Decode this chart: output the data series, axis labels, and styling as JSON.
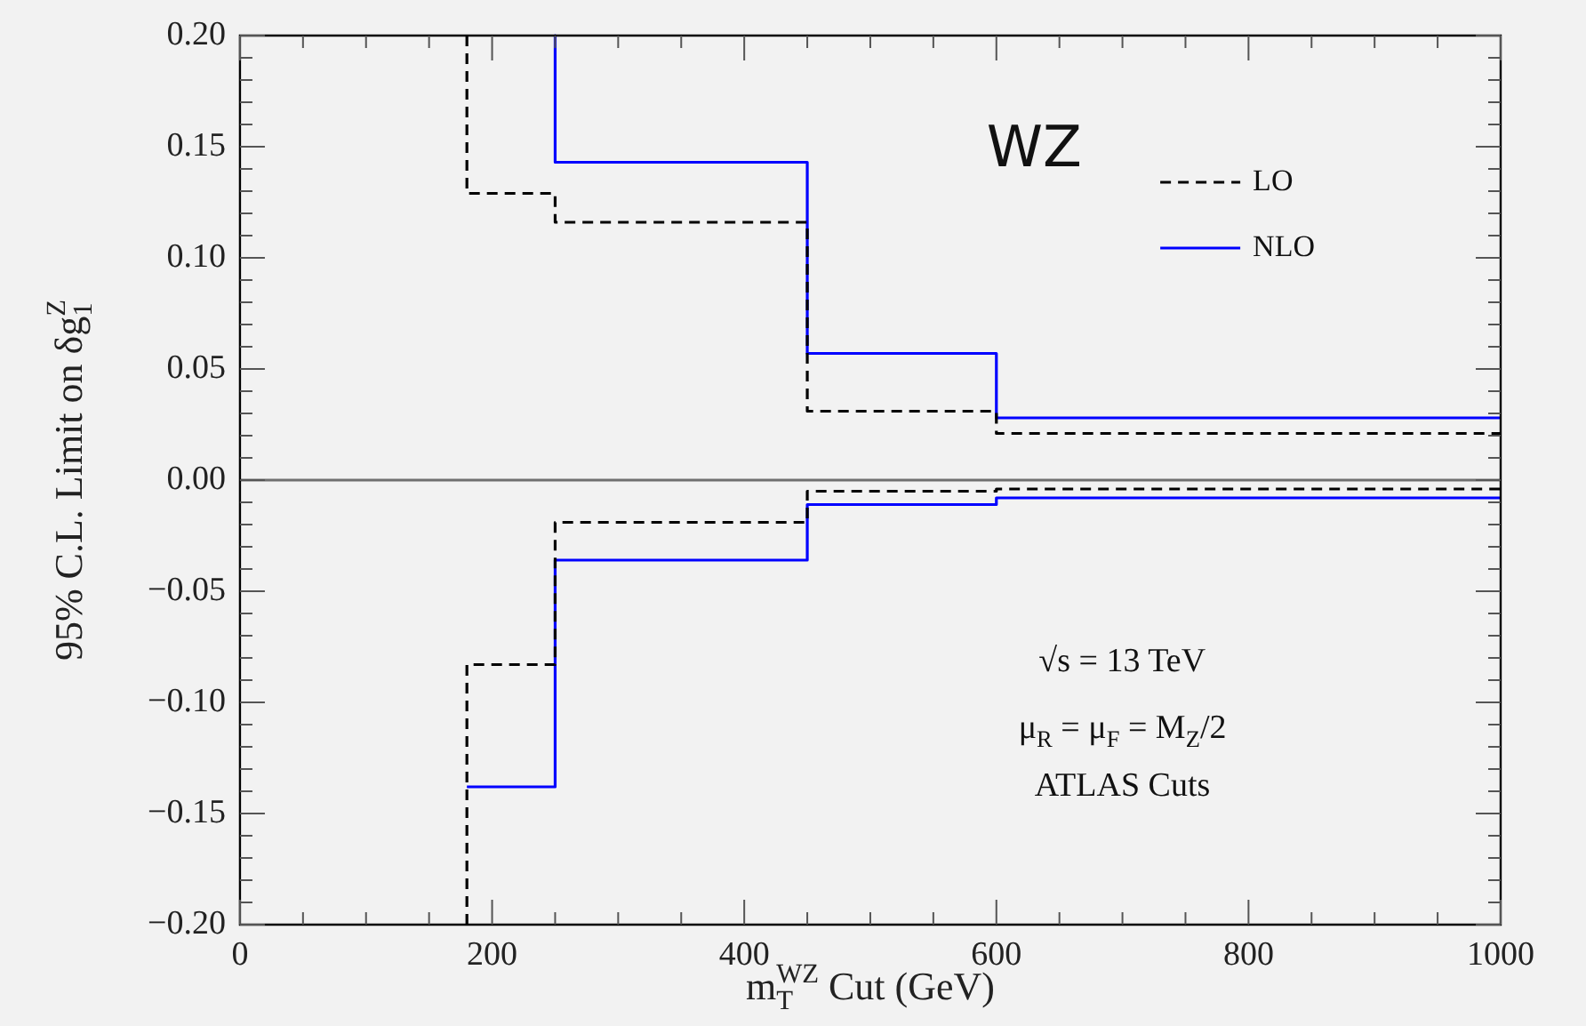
{
  "chart_data": {
    "type": "line",
    "xlabel": "m$_{T}$$^{WZ}$ Cut (GeV)",
    "ylabel": "95% C.L. Limit on δg$_{1}$$^{Z}$",
    "annotations": [
      "WZ",
      "√s = 13 TeV",
      "μ$_{R}$ = μ$_{F}$ = M$_{Z}$/2",
      "ATLAS Cuts"
    ],
    "xlim": [
      0,
      1000
    ],
    "ylim": [
      -0.2,
      0.2
    ],
    "xticks": [
      0,
      {
        "value": 50,
        "label": null
      },
      {
        "value": 100,
        "label": null
      },
      {
        "value": 150,
        "label": null
      },
      200,
      {
        "value": 250,
        "label": null
      },
      {
        "value": 300,
        "label": null
      },
      {
        "value": 350,
        "label": null
      },
      400,
      {
        "value": 450,
        "label": null
      },
      {
        "value": 500,
        "label": null
      },
      {
        "value": 550,
        "label": null
      },
      600,
      {
        "value": 650,
        "label": null
      },
      {
        "value": 700,
        "label": null
      },
      {
        "value": 750,
        "label": null
      },
      800,
      {
        "value": 850,
        "label": null
      },
      {
        "value": 900,
        "label": null
      },
      {
        "value": 950,
        "label": null
      },
      1000
    ],
    "yticks": [
      {
        "value": -0.2,
        "label": "−0.20"
      },
      {
        "value": -0.19,
        "label": null
      },
      {
        "value": -0.18,
        "label": null
      },
      {
        "value": -0.17,
        "label": null
      },
      {
        "value": -0.16,
        "label": null
      },
      {
        "value": -0.15,
        "label": "−0.15"
      },
      {
        "value": -0.14,
        "label": null
      },
      {
        "value": -0.13,
        "label": null
      },
      {
        "value": -0.12,
        "label": null
      },
      {
        "value": -0.11,
        "label": null
      },
      {
        "value": -0.1,
        "label": "−0.10"
      },
      {
        "value": -0.09,
        "label": null
      },
      {
        "value": -0.08,
        "label": null
      },
      {
        "value": -0.07,
        "label": null
      },
      {
        "value": -0.06,
        "label": null
      },
      {
        "value": -0.05,
        "label": "−0.05"
      },
      {
        "value": -0.04,
        "label": null
      },
      {
        "value": -0.03,
        "label": null
      },
      {
        "value": -0.02,
        "label": null
      },
      {
        "value": -0.01,
        "label": null
      },
      {
        "value": 0,
        "label": "0.00"
      },
      {
        "value": 0.01,
        "label": null
      },
      {
        "value": 0.02,
        "label": null
      },
      {
        "value": 0.03,
        "label": null
      },
      {
        "value": 0.04,
        "label": null
      },
      {
        "value": 0.05,
        "label": "0.05"
      },
      {
        "value": 0.06,
        "label": null
      },
      {
        "value": 0.07,
        "label": null
      },
      {
        "value": 0.08,
        "label": null
      },
      {
        "value": 0.09,
        "label": null
      },
      {
        "value": 0.1,
        "label": "0.10"
      },
      {
        "value": 0.11,
        "label": null
      },
      {
        "value": 0.12,
        "label": null
      },
      {
        "value": 0.13,
        "label": null
      },
      {
        "value": 0.14,
        "label": null
      },
      {
        "value": 0.15,
        "label": "0.15"
      },
      {
        "value": 0.16,
        "label": null
      },
      {
        "value": 0.17,
        "label": null
      },
      {
        "value": 0.18,
        "label": null
      },
      {
        "value": 0.19,
        "label": null
      },
      {
        "value": 0.2,
        "label": "0.20"
      }
    ],
    "ref_lines": [
      {
        "axis": "y",
        "value": 0,
        "label": null,
        "color": "#707070"
      }
    ],
    "legend": "top right",
    "marker": "none",
    "series": [
      {
        "name": "LO",
        "color": "#000000",
        "line_style": "dashed",
        "x": [
          180,
          180,
          250,
          250,
          450,
          450,
          600,
          600,
          1000
        ],
        "values": [
          0.2,
          0.129,
          0.129,
          0.116,
          0.116,
          0.031,
          0.031,
          0.021,
          0.021
        ]
      },
      {
        "name": "NLO",
        "color": "#0000ff",
        "line_style": "solid",
        "x": [
          250,
          250,
          450,
          450,
          600,
          600,
          1000
        ],
        "values": [
          0.2,
          0.143,
          0.143,
          0.057,
          0.057,
          0.028,
          0.028
        ]
      },
      {
        "color": "#000000",
        "line_style": "dashed",
        "x": [
          180,
          180,
          250,
          250,
          450,
          450,
          600,
          600,
          1000
        ],
        "values": [
          -0.2,
          -0.083,
          -0.083,
          -0.019,
          -0.019,
          -0.005,
          -0.005,
          -0.004,
          -0.004
        ]
      },
      {
        "color": "#0000ff",
        "line_style": "solid",
        "x": [
          180,
          250,
          250,
          450,
          450,
          600,
          600,
          1000
        ],
        "values": [
          -0.138,
          -0.138,
          -0.036,
          -0.036,
          -0.011,
          -0.011,
          -0.008,
          -0.008
        ]
      }
    ]
  }
}
